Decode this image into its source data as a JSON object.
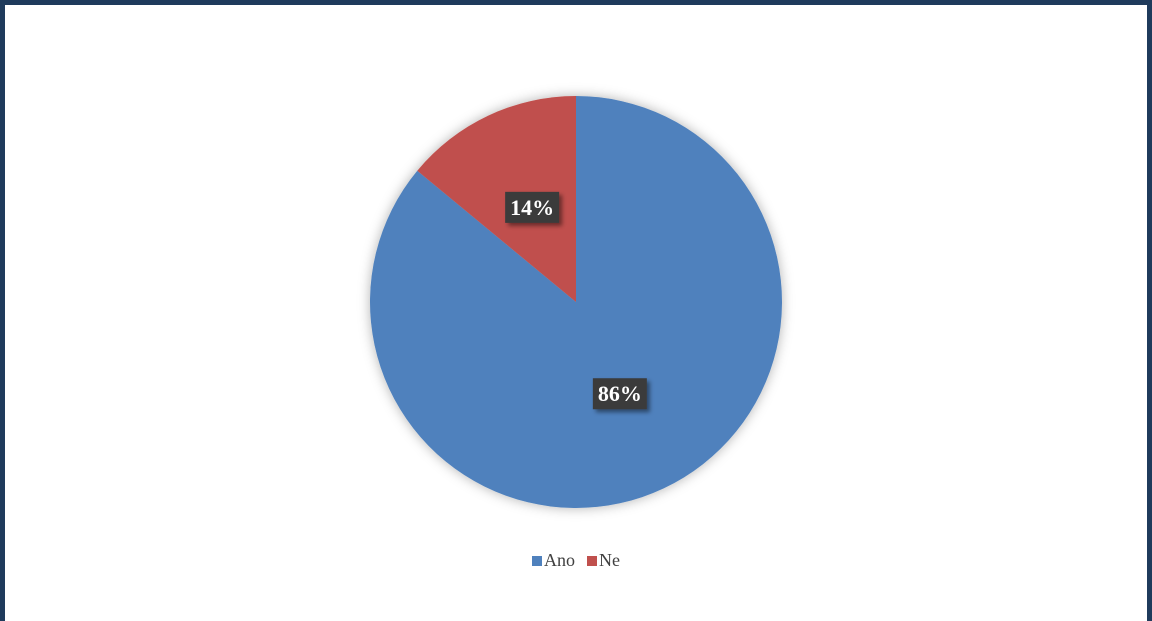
{
  "chart_data": {
    "type": "pie",
    "categories": [
      "Ano",
      "Ne"
    ],
    "values": [
      86,
      14
    ],
    "value_labels": [
      "86%",
      "14%"
    ],
    "colors": [
      "#4f81bd",
      "#c0504d"
    ],
    "start_angle": 0,
    "direction": "clockwise",
    "legend": "bottom"
  }
}
